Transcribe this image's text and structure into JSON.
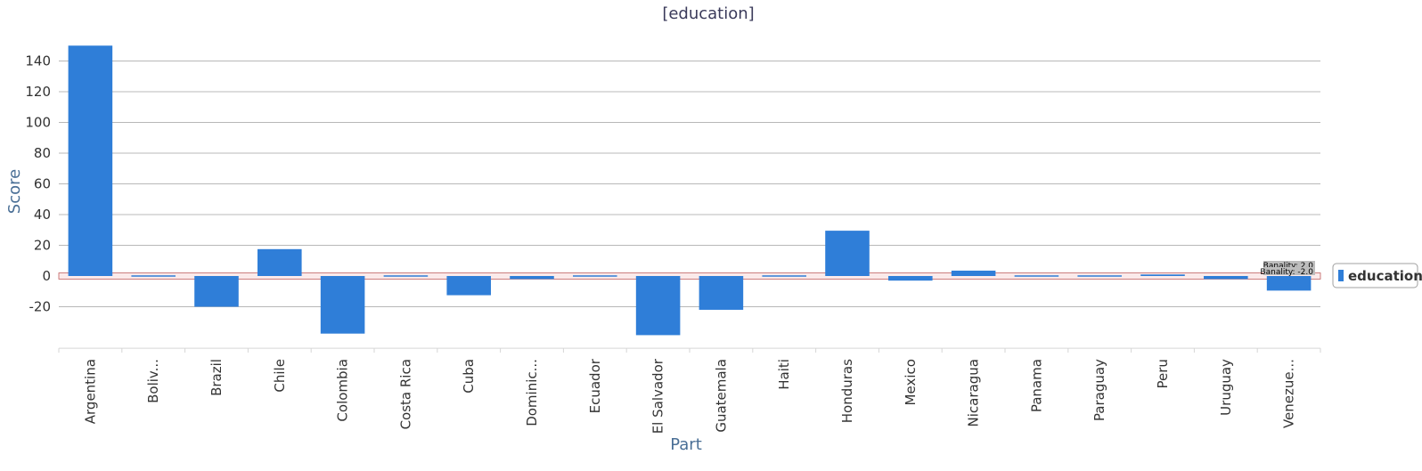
{
  "chart_data": {
    "type": "bar",
    "title": "[education]",
    "xlabel": "Part",
    "ylabel": "Score",
    "ylim": [
      -47,
      150
    ],
    "yticks": [
      -20,
      0,
      20,
      40,
      60,
      80,
      100,
      120,
      140
    ],
    "grid": true,
    "legend_position": "right",
    "categories": [
      "Argentina",
      "Boliv...",
      "Brazil",
      "Chile",
      "Colombia",
      "Costa Rica",
      "Cuba",
      "Dominic...",
      "Ecuador",
      "El Salvador",
      "Guatemala",
      "Haiti",
      "Honduras",
      "Mexico",
      "Nicaragua",
      "Panama",
      "Paraguay",
      "Peru",
      "Uruguay",
      "Venezue..."
    ],
    "series": [
      {
        "name": "education",
        "color": "#2f7ed8",
        "values": [
          150,
          -0.3,
          -20,
          17.5,
          -37.5,
          0.5,
          -12.5,
          -2,
          -0.5,
          -38.5,
          -22,
          -0.5,
          29.5,
          -3,
          3.5,
          0.5,
          0.3,
          1,
          -2,
          -9.5
        ]
      }
    ],
    "bands": [
      {
        "label": "Banality: 2.0",
        "value": 2.0
      },
      {
        "label": "Banality: -2.0",
        "value": -2.0
      }
    ]
  }
}
